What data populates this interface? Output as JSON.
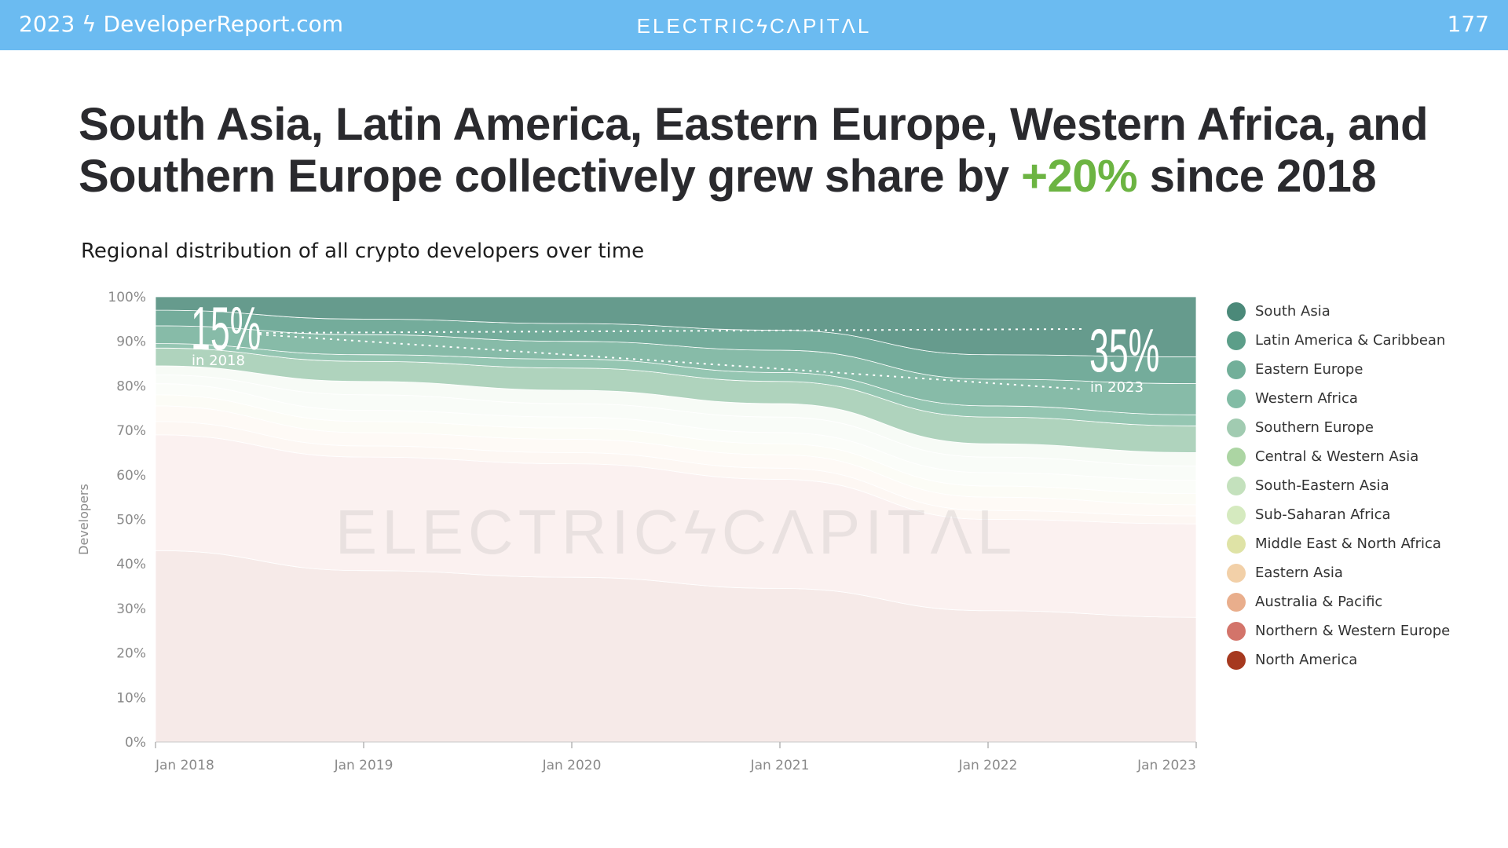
{
  "header": {
    "left": "2023 ϟ DeveloperReport.com",
    "center": "ELECTRICϟCΛPITΛL",
    "page_number": "177"
  },
  "headline": {
    "line1": "South Asia, Latin America, Eastern Europe, Western Africa, and",
    "line2_pre": "Southern Europe collectively grew share by ",
    "line2_accent": "+20%",
    "line2_post": " since 2018"
  },
  "subtitle": "Regional distribution of all crypto developers over time",
  "watermark": "ELECTRICϟCΛPITΛL",
  "annotations": {
    "start": {
      "value": "15%",
      "label": "in 2018"
    },
    "end": {
      "value": "35%",
      "label": "in 2023"
    }
  },
  "colors": {
    "header_bg": "#6bbbf1",
    "accent_green": "#6cb442"
  },
  "chart_data": {
    "type": "area",
    "stacked": true,
    "normalized": true,
    "ylabel": "Developers",
    "ylim": [
      0,
      100
    ],
    "y_ticks": [
      "0%",
      "10%",
      "20%",
      "30%",
      "40%",
      "50%",
      "60%",
      "70%",
      "80%",
      "90%",
      "100%"
    ],
    "x": [
      "Jan 2018",
      "Jan 2019",
      "Jan 2020",
      "Jan 2021",
      "Jan 2022",
      "Jan 2023"
    ],
    "legend_position": "right",
    "series": [
      {
        "name": "North America",
        "color": "#a6391f",
        "values": [
          43.0,
          38.5,
          37.0,
          34.5,
          29.5,
          28.0
        ]
      },
      {
        "name": "Northern & Western Europe",
        "color": "#d3746a",
        "values": [
          26.0,
          25.5,
          25.5,
          24.5,
          20.5,
          21.0
        ]
      },
      {
        "name": "Australia & Pacific",
        "color": "#e9ae8c",
        "values": [
          3.0,
          2.5,
          2.5,
          2.5,
          2.0,
          1.8
        ]
      },
      {
        "name": "Eastern Asia",
        "color": "#f2d0a8",
        "values": [
          3.5,
          3.0,
          3.0,
          3.0,
          3.0,
          2.5
        ]
      },
      {
        "name": "Middle East & North Africa",
        "color": "#dfe3a6",
        "values": [
          2.5,
          2.5,
          2.5,
          2.5,
          2.5,
          2.5
        ]
      },
      {
        "name": "Sub-Saharan Africa",
        "color": "#d5eabf",
        "values": [
          2.5,
          2.5,
          2.5,
          2.5,
          3.0,
          3.0
        ]
      },
      {
        "name": "South-Eastern Asia",
        "color": "#c4e1bd",
        "values": [
          2.0,
          3.5,
          3.0,
          3.5,
          3.5,
          3.2
        ]
      },
      {
        "name": "Central & Western Asia",
        "color": "#acd5a3",
        "values": [
          2.0,
          3.0,
          3.0,
          3.0,
          3.0,
          3.0
        ]
      },
      {
        "name": "Southern Europe",
        "color": "#a1cbb1",
        "values": [
          4.0,
          4.5,
          5.0,
          5.0,
          6.0,
          6.0
        ]
      },
      {
        "name": "Western Africa",
        "color": "#82bca5",
        "values": [
          1.0,
          1.5,
          2.0,
          2.0,
          2.5,
          2.5
        ]
      },
      {
        "name": "Eastern Europe",
        "color": "#72af99",
        "values": [
          4.0,
          4.5,
          4.0,
          5.0,
          6.0,
          7.0
        ]
      },
      {
        "name": "Latin America & Caribbean",
        "color": "#5c9e89",
        "values": [
          3.5,
          3.5,
          4.0,
          4.5,
          5.5,
          6.0
        ]
      },
      {
        "name": "South Asia",
        "color": "#4b8979",
        "values": [
          3.0,
          5.0,
          6.0,
          7.5,
          13.0,
          13.5
        ]
      }
    ],
    "legend_order": [
      "South Asia",
      "Latin America & Caribbean",
      "Eastern Europe",
      "Western Africa",
      "Southern Europe",
      "Central & Western Asia",
      "South-Eastern Asia",
      "Sub-Saharan Africa",
      "Middle East & North Africa",
      "Eastern Asia",
      "Australia & Pacific",
      "Northern & Western Europe",
      "North America"
    ]
  }
}
